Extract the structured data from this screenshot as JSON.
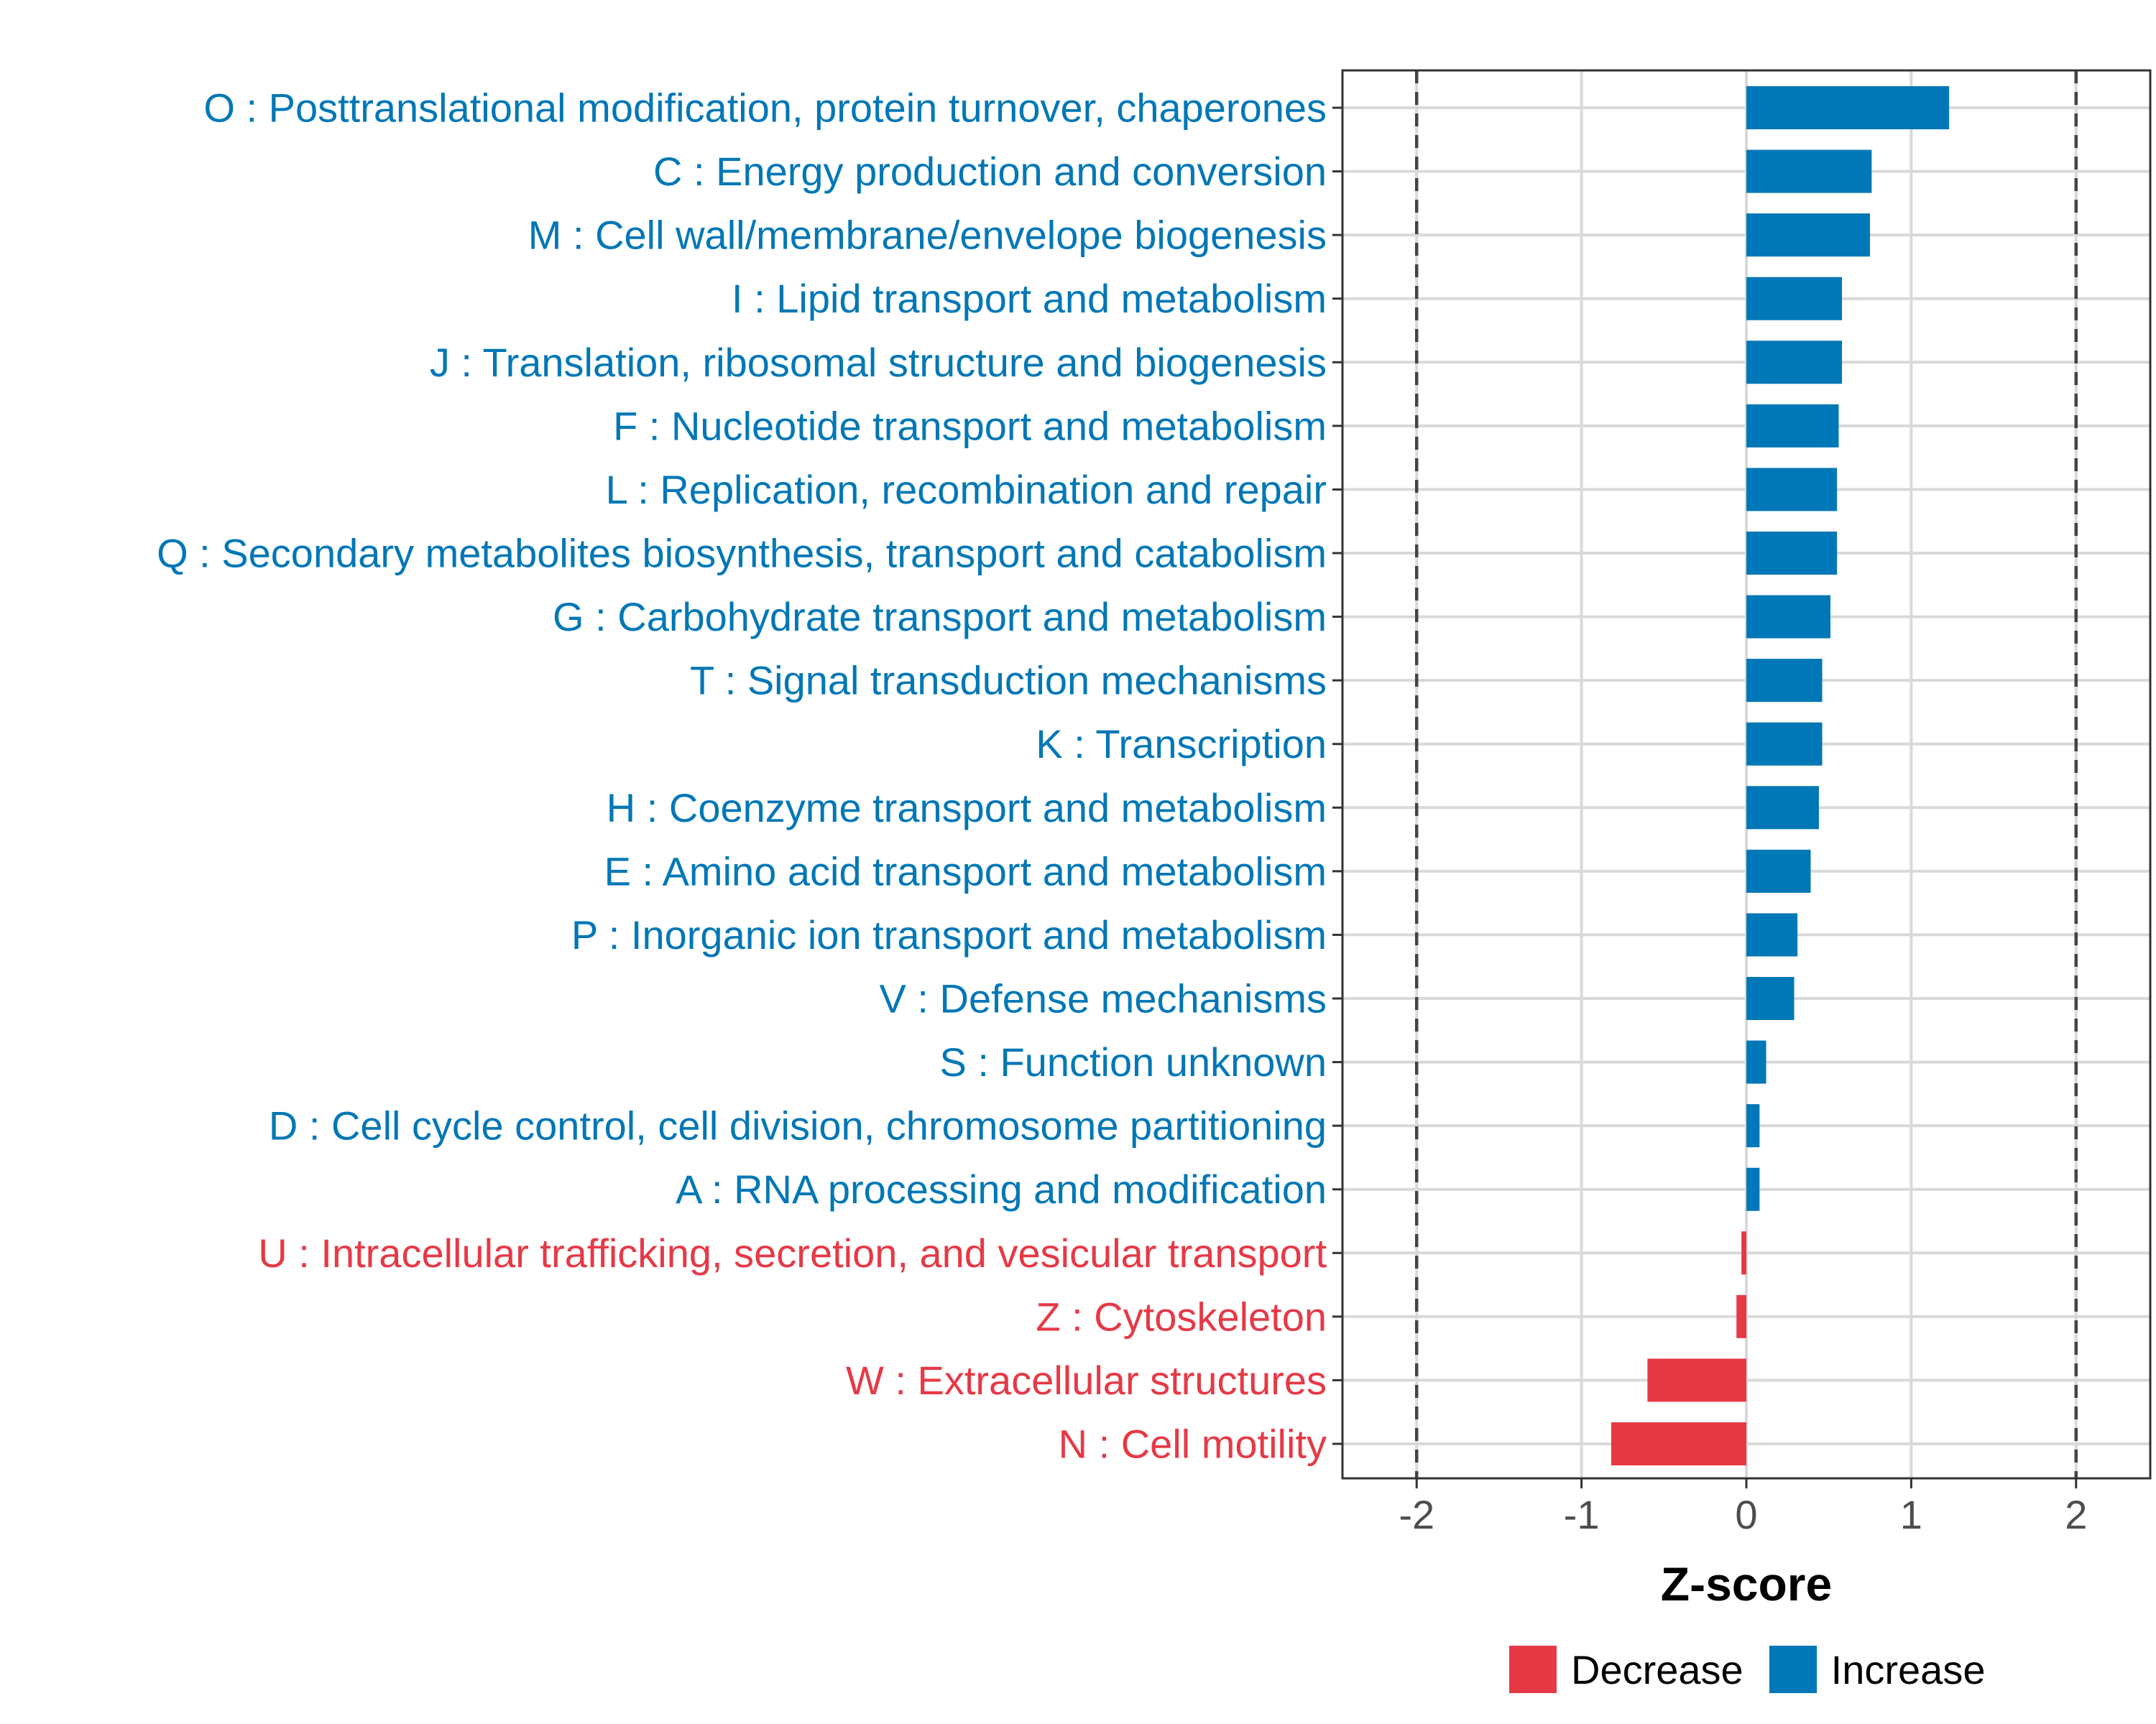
{
  "chart_data": {
    "type": "bar",
    "orientation": "horizontal",
    "title": "",
    "xlabel": "Z-score",
    "ylabel": "",
    "xlim": [
      -2.45,
      2.45
    ],
    "xticks": [
      -2,
      -1,
      0,
      1,
      2
    ],
    "xtick_labels": [
      "-2",
      "-1",
      "0",
      "1",
      "2"
    ],
    "reference_lines": [
      -2,
      2
    ],
    "grid": true,
    "legend_position": "bottom",
    "categories": [
      "O : Posttranslational modification, protein turnover, chaperones",
      "C : Energy production and conversion",
      "M : Cell wall/membrane/envelope biogenesis",
      "I : Lipid transport and metabolism",
      "J : Translation, ribosomal structure and biogenesis",
      "F : Nucleotide transport and metabolism",
      "L : Replication, recombination and repair",
      "Q : Secondary metabolites biosynthesis, transport and catabolism",
      "G : Carbohydrate transport and metabolism",
      "T : Signal transduction mechanisms",
      "K : Transcription",
      "H : Coenzyme transport and metabolism",
      "E : Amino acid transport and metabolism",
      "P : Inorganic ion transport and metabolism",
      "V : Defense mechanisms",
      "S : Function unknown",
      "D : Cell cycle control, cell division, chromosome partitioning",
      "A : RNA processing and modification",
      "U : Intracellular trafficking, secretion, and vesicular transport",
      "Z : Cytoskeleton",
      "W : Extracellular structures",
      "N : Cell motility"
    ],
    "values": [
      1.23,
      0.76,
      0.75,
      0.58,
      0.58,
      0.56,
      0.55,
      0.55,
      0.51,
      0.46,
      0.46,
      0.44,
      0.39,
      0.31,
      0.29,
      0.12,
      0.08,
      0.08,
      -0.03,
      -0.06,
      -0.6,
      -0.82
    ],
    "groups": [
      "Increase",
      "Increase",
      "Increase",
      "Increase",
      "Increase",
      "Increase",
      "Increase",
      "Increase",
      "Increase",
      "Increase",
      "Increase",
      "Increase",
      "Increase",
      "Increase",
      "Increase",
      "Increase",
      "Increase",
      "Increase",
      "Decrease",
      "Decrease",
      "Decrease",
      "Decrease"
    ],
    "legend": [
      {
        "name": "Decrease",
        "color": "#E63946"
      },
      {
        "name": "Increase",
        "color": "#0077B6"
      }
    ]
  },
  "colors": {
    "increase": "#0077B6",
    "decrease": "#E63946",
    "grid": "#D9D9D9",
    "axis_text": "#4D4D4D",
    "panel_border": "#333333"
  }
}
